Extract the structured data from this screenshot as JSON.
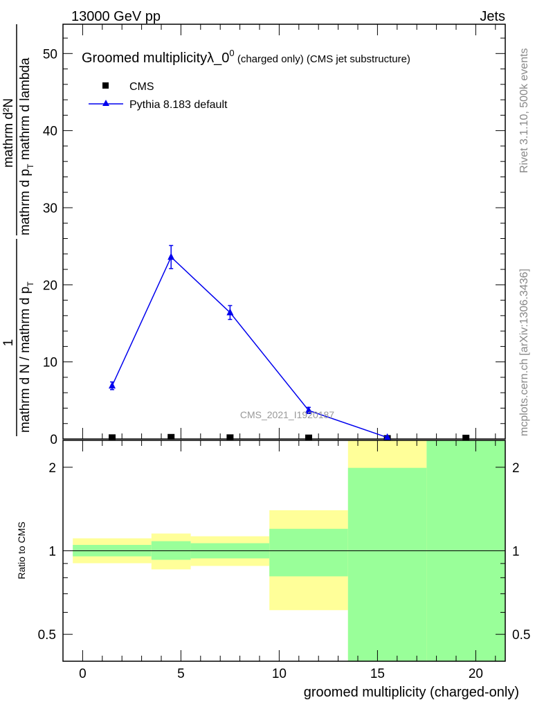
{
  "header": {
    "left": "13000 GeV pp",
    "right": "Jets"
  },
  "side_labels": {
    "rivet": "Rivet 3.1.10,  500k events",
    "mcplots": "mcplots.cern.ch [arXiv:1306.3436]"
  },
  "watermark": "CMS_2021_I1920187",
  "ylabel_parts": {
    "num1": "1",
    "den1": "mathrm d N / mathrm d p",
    "num2": "mathrm d²N",
    "den2a": "mathrm d p",
    "den2b": " mathrm d lambda",
    "sub": "T"
  },
  "colors": {
    "mc": "#0000ee",
    "data": "#000000",
    "band_stat": "#99ff99",
    "band_total": "#ffff99"
  },
  "chart_data": [
    {
      "type": "scatter",
      "title_main": "Groomed multiplicityλ_0",
      "title_sup": "0",
      "title_small": " (charged only) (CMS jet substructure)",
      "xlim": [
        -1,
        21.5
      ],
      "ylim": [
        0,
        53.8
      ],
      "yticks": [
        0,
        10,
        20,
        30,
        40,
        50
      ],
      "ytick_labels": [
        "0",
        "10",
        "20",
        "30",
        "40",
        "50"
      ],
      "legend": {
        "placement": "top-left",
        "entries": [
          "CMS",
          "Pythia 8.183 default"
        ]
      },
      "series": [
        {
          "name": "CMS",
          "x": [
            1.5,
            4.5,
            7.5,
            11.5,
            15.5,
            19.5
          ],
          "y": [
            0.15,
            0.2,
            0.15,
            0.12,
            0.05,
            0.1
          ]
        },
        {
          "name": "Pythia 8.183 default",
          "x": [
            1.5,
            4.5,
            7.5,
            11.5,
            15.5
          ],
          "y": [
            6.9,
            23.6,
            16.4,
            3.7,
            0.2
          ],
          "yerr": [
            0.5,
            1.5,
            0.9,
            0.4,
            0.1
          ]
        }
      ]
    },
    {
      "type": "area",
      "ylabel": "Ratio to CMS",
      "xlabel": "groomed multiplicity (charged-only)",
      "xlim": [
        -1,
        21.5
      ],
      "ylim": [
        0.4,
        2.5
      ],
      "yscale": "log",
      "xticks": [
        0,
        5,
        10,
        15,
        20
      ],
      "xtick_labels": [
        "0",
        "5",
        "10",
        "15",
        "20"
      ],
      "yticks": [
        0.5,
        1,
        2
      ],
      "ytick_labels": [
        "0.5",
        "1",
        "2"
      ],
      "bins": [
        [
          -0.5,
          3.5
        ],
        [
          3.5,
          5.5
        ],
        [
          5.5,
          9.5
        ],
        [
          9.5,
          13.5
        ],
        [
          13.5,
          17.5
        ],
        [
          17.5,
          21.5
        ]
      ],
      "stat_band": [
        [
          0.955,
          1.05
        ],
        [
          0.928,
          1.083
        ],
        [
          0.939,
          1.065
        ],
        [
          0.809,
          1.2
        ],
        [
          0.3,
          1.99
        ],
        [
          0.3,
          3.0
        ]
      ],
      "total_band": [
        [
          0.902,
          1.109
        ],
        [
          0.857,
          1.154
        ],
        [
          0.882,
          1.128
        ],
        [
          0.611,
          1.4
        ],
        [
          0.3,
          3.0
        ],
        [
          0.3,
          3.0
        ]
      ]
    }
  ]
}
